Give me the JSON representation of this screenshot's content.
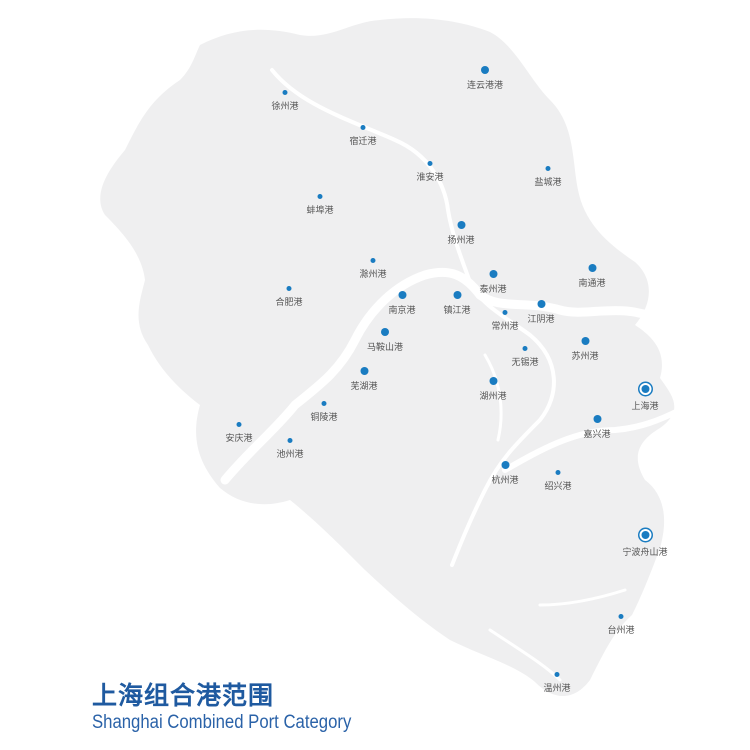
{
  "title": "上海组合港范围",
  "subtitle": "Shanghai Combined Port Category",
  "colors": {
    "land": "#efeff0",
    "river": "#ffffff",
    "port_dot": "#1a7cc1",
    "title": "#1f5aa0"
  },
  "ports": [
    {
      "name": "连云港港",
      "size": "big"
    },
    {
      "name": "徐州港",
      "size": "small"
    },
    {
      "name": "宿迁港",
      "size": "small"
    },
    {
      "name": "淮安港",
      "size": "small"
    },
    {
      "name": "盐城港",
      "size": "small"
    },
    {
      "name": "蚌埠港",
      "size": "small"
    },
    {
      "name": "扬州港",
      "size": "big"
    },
    {
      "name": "滁州港",
      "size": "small"
    },
    {
      "name": "合肥港",
      "size": "small"
    },
    {
      "name": "泰州港",
      "size": "big"
    },
    {
      "name": "南通港",
      "size": "big"
    },
    {
      "name": "南京港",
      "size": "big"
    },
    {
      "name": "镇江港",
      "size": "big"
    },
    {
      "name": "常州港",
      "size": "small"
    },
    {
      "name": "江阴港",
      "size": "big"
    },
    {
      "name": "马鞍山港",
      "size": "big"
    },
    {
      "name": "苏州港",
      "size": "big"
    },
    {
      "name": "无锡港",
      "size": "small"
    },
    {
      "name": "芜湖港",
      "size": "big"
    },
    {
      "name": "湖州港",
      "size": "big"
    },
    {
      "name": "上海港",
      "size": "hub"
    },
    {
      "name": "铜陵港",
      "size": "small"
    },
    {
      "name": "安庆港",
      "size": "small"
    },
    {
      "name": "嘉兴港",
      "size": "big"
    },
    {
      "name": "池州港",
      "size": "small"
    },
    {
      "name": "杭州港",
      "size": "big"
    },
    {
      "name": "绍兴港",
      "size": "small"
    },
    {
      "name": "宁波舟山港",
      "size": "hub"
    },
    {
      "name": "台州港",
      "size": "small"
    },
    {
      "name": "温州港",
      "size": "small"
    }
  ]
}
